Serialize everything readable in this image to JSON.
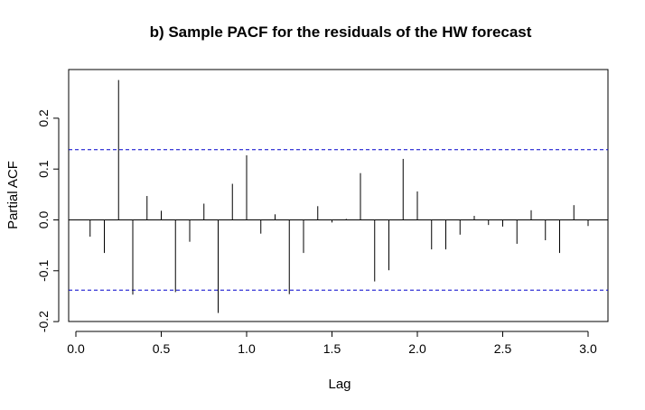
{
  "chart_data": {
    "type": "bar",
    "title": "b) Sample PACF for the residuals of the HW forecast",
    "xlabel": "Lag",
    "ylabel": "Partial ACF",
    "xlim": [
      -0.05,
      3.1
    ],
    "ylim": [
      -0.2,
      0.29
    ],
    "x_ticks": [
      0.0,
      0.5,
      1.0,
      1.5,
      2.0,
      2.5,
      3.0
    ],
    "x_tick_labels": [
      "0.0",
      "0.5",
      "1.0",
      "1.5",
      "2.0",
      "2.5",
      "3.0"
    ],
    "y_ticks": [
      -0.2,
      -0.1,
      0.0,
      0.1,
      0.2
    ],
    "y_tick_labels": [
      "-0.2",
      "-0.1",
      "0.0",
      "0.1",
      "0.2"
    ],
    "confidence_bound": 0.138,
    "bound_color": "#0000cc",
    "bar_color": "#000000",
    "grid": false,
    "x": [
      0.0833,
      0.1667,
      0.25,
      0.3333,
      0.4167,
      0.5,
      0.5833,
      0.6667,
      0.75,
      0.8333,
      0.9167,
      1.0,
      1.0833,
      1.1667,
      1.25,
      1.3333,
      1.4167,
      1.5,
      1.5833,
      1.6667,
      1.75,
      1.8333,
      1.9167,
      2.0,
      2.0833,
      2.1667,
      2.25,
      2.3333,
      2.4167,
      2.5,
      2.5833,
      2.6667,
      2.75,
      2.8333,
      2.9167,
      3.0
    ],
    "values": [
      -0.033,
      -0.065,
      0.275,
      -0.147,
      0.047,
      0.018,
      -0.142,
      -0.043,
      0.032,
      -0.183,
      0.071,
      0.127,
      -0.027,
      0.011,
      -0.146,
      -0.065,
      0.027,
      -0.005,
      0.002,
      0.092,
      -0.121,
      -0.099,
      0.12,
      0.056,
      -0.058,
      -0.058,
      -0.029,
      0.008,
      -0.01,
      -0.013,
      -0.047,
      0.019,
      -0.04,
      -0.065,
      0.029,
      -0.012
    ]
  }
}
